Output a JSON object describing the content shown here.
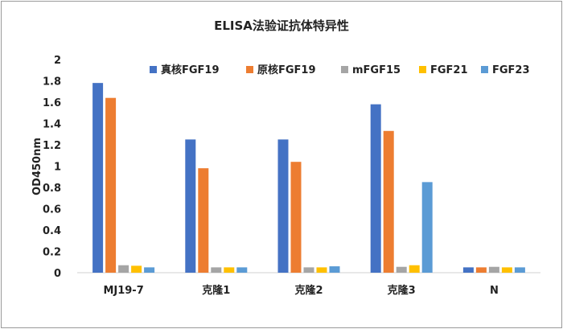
{
  "chart_data": {
    "type": "bar",
    "title": "ELISA法验证抗体特异性",
    "xlabel": "",
    "ylabel": "OD450nm",
    "ylim": [
      0,
      2
    ],
    "yticks": [
      "0",
      "0.2",
      "0.4",
      "0.6",
      "0.8",
      "1",
      "1.2",
      "1.4",
      "1.6",
      "1.8",
      "2"
    ],
    "grid": false,
    "legend_position": "top",
    "categories": [
      "MJ19-7",
      "克隆1",
      "克隆2",
      "克隆3",
      "N"
    ],
    "series": [
      {
        "name": "真核FGF19",
        "color": "#4472c4",
        "values": [
          1.78,
          1.25,
          1.25,
          1.58,
          0.05
        ]
      },
      {
        "name": "原核FGF19",
        "color": "#ed7d31",
        "values": [
          1.64,
          0.98,
          1.04,
          1.33,
          0.05
        ]
      },
      {
        "name": "mFGF15",
        "color": "#a5a5a5",
        "values": [
          0.07,
          0.05,
          0.05,
          0.055,
          0.055
        ]
      },
      {
        "name": "FGF21",
        "color": "#ffc000",
        "values": [
          0.065,
          0.05,
          0.05,
          0.07,
          0.05
        ]
      },
      {
        "name": "FGF23",
        "color": "#5b9bd5",
        "values": [
          0.05,
          0.05,
          0.06,
          0.85,
          0.05
        ]
      }
    ]
  }
}
